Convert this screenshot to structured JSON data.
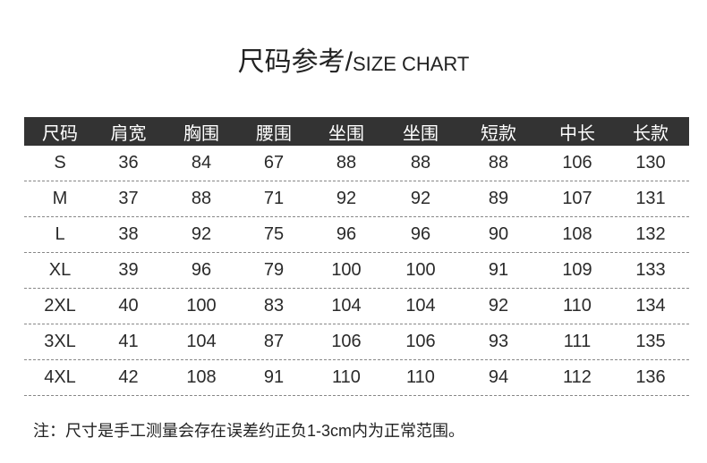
{
  "title": {
    "cn": "尺码参考",
    "sep": "/",
    "en": "SIZE CHART"
  },
  "headers": [
    "尺码",
    "肩宽",
    "胸围",
    "腰围",
    "坐围",
    "坐围",
    "短款",
    "中长",
    "长款"
  ],
  "rows": [
    [
      "S",
      "36",
      "84",
      "67",
      "88",
      "88",
      "88",
      "106",
      "130"
    ],
    [
      "M",
      "37",
      "88",
      "71",
      "92",
      "92",
      "89",
      "107",
      "131"
    ],
    [
      "L",
      "38",
      "92",
      "75",
      "96",
      "96",
      "90",
      "108",
      "132"
    ],
    [
      "XL",
      "39",
      "96",
      "79",
      "100",
      "100",
      "91",
      "109",
      "133"
    ],
    [
      "2XL",
      "40",
      "100",
      "83",
      "104",
      "104",
      "92",
      "110",
      "134"
    ],
    [
      "3XL",
      "41",
      "104",
      "87",
      "106",
      "106",
      "93",
      "111",
      "135"
    ],
    [
      "4XL",
      "42",
      "108",
      "91",
      "110",
      "110",
      "94",
      "112",
      "136"
    ]
  ],
  "note": "注：尺寸是手工测量会存在误差约正负1-3cm内为正常范围。",
  "colors": {
    "header_bg": "#333333",
    "header_text": "#ffffff"
  }
}
